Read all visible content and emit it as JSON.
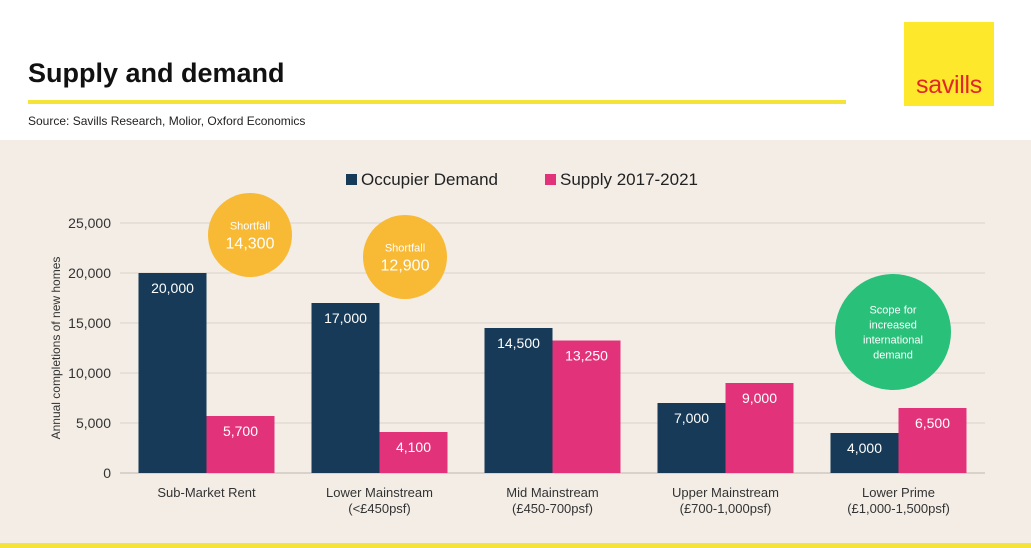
{
  "header": {
    "title": "Supply and demand",
    "source": "Source: Savills Research, Molior, Oxford Economics",
    "logo": "savills",
    "colors": {
      "rule": "#f5e33a",
      "logo_bg": "#fde82b",
      "logo_text": "#e3242b",
      "panel_bg": "#f3ede6"
    }
  },
  "chart_data": {
    "type": "bar",
    "ylabel": "Annual completions of new homes",
    "ylim": [
      0,
      25000
    ],
    "yticks": [
      "0",
      "5,000",
      "10,000",
      "15,000",
      "20,000",
      "25,000"
    ],
    "ytick_values": [
      0,
      5000,
      10000,
      15000,
      20000,
      25000
    ],
    "grid": true,
    "legend_position": "top",
    "categories": [
      [
        "Sub-Market Rent"
      ],
      [
        "Lower Mainstream",
        "(<£450psf)"
      ],
      [
        "Mid Mainstream",
        "(£450-700psf)"
      ],
      [
        "Upper Mainstream",
        "(£700-1,000psf)"
      ],
      [
        "Lower Prime",
        "(£1,000-1,500psf)"
      ]
    ],
    "series": [
      {
        "name": "Occupier Demand",
        "color": "#163a57",
        "values": [
          20000,
          17000,
          14500,
          7000,
          4000
        ],
        "labels": [
          "20,000",
          "17,000",
          "14,500",
          "7,000",
          "4,000"
        ]
      },
      {
        "name": "Supply 2017-2021",
        "color": "#e2337a",
        "values": [
          5700,
          4100,
          13250,
          9000,
          6500
        ],
        "labels": [
          "5,700",
          "4,100",
          "13,250",
          "9,000",
          "6,500"
        ]
      }
    ],
    "annotations": [
      {
        "category": 0,
        "lines": [
          "Shortfall",
          "14,300"
        ],
        "color": "#f8b935"
      },
      {
        "category": 1,
        "lines": [
          "Shortfall",
          "12,900"
        ],
        "color": "#f8b935"
      },
      {
        "category": 4,
        "lines": [
          "Scope for",
          "increased",
          "international",
          "demand"
        ],
        "color": "#29c07a"
      }
    ]
  }
}
